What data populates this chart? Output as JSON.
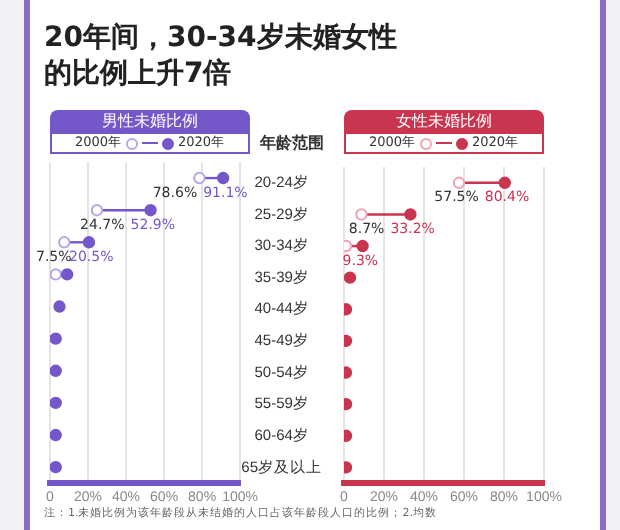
{
  "chart_data": [
    {
      "type": "scatter",
      "title": "20年间，30-34岁未婚女性的比例上升7倍",
      "subtitle": "男性未婚比例",
      "orientation": "horizontal",
      "categories": [
        null,
        null,
        null,
        null,
        null,
        null,
        null,
        null,
        null,
        null
      ],
      "series": [
        {
          "name": "2000年",
          "color": "#b7a6ea",
          "values": [
            78.6,
            24.7,
            7.5,
            3,
            null,
            null,
            null,
            null,
            null,
            null
          ],
          "value_labels": [
            "78.6%",
            "24.7%",
            "7.5%",
            null,
            null,
            null,
            null,
            null,
            null,
            null
          ]
        },
        {
          "name": "2020年",
          "color": "#7457c9",
          "values": [
            91.1,
            52.9,
            20.5,
            9,
            5,
            3,
            3,
            3,
            3,
            3
          ],
          "value_labels": [
            "91.1%",
            "52.9%",
            "20.5%",
            null,
            null,
            null,
            null,
            null,
            null,
            null
          ]
        }
      ],
      "xlim": [
        0,
        100
      ],
      "xticks": [
        {
          "value": 0,
          "label": "0"
        },
        {
          "value": 20,
          "label": "20%"
        },
        {
          "value": 40,
          "label": "40%"
        },
        {
          "value": 60,
          "label": "60%"
        },
        {
          "value": 80,
          "label": "80%"
        },
        {
          "value": 100,
          "label": "100%"
        }
      ],
      "tick_labels": "x",
      "grid": "x",
      "legend": "top",
      "marker": "circle",
      "annotations": [
        "注：1.未婚比例为该年龄段从未结婚的人口占该年龄段人口的比例；2.均数"
      ]
    },
    {
      "type": "scatter",
      "subtitle": "女性未婚比例",
      "ylabel": "年龄范围",
      "orientation": "horizontal",
      "categories": [
        "20-24岁",
        "25-29岁",
        "30-34岁",
        "35-39岁",
        "40-44岁",
        "45-49岁",
        "50-54岁",
        "55-59岁",
        "60-64岁",
        "65岁及以上"
      ],
      "series": [
        {
          "name": "2000年",
          "color": "#f2a3b5",
          "values": [
            57.5,
            8.7,
            1,
            null,
            null,
            null,
            null,
            null,
            null,
            null
          ],
          "value_labels": [
            "57.5%",
            "8.7%",
            null,
            null,
            null,
            null,
            null,
            null,
            null,
            null
          ]
        },
        {
          "name": "2020年",
          "color": "#c9344f",
          "values": [
            80.4,
            33.2,
            9.3,
            3,
            1,
            1,
            1,
            1,
            1,
            1
          ],
          "value_labels": [
            "80.4%",
            "33.2%",
            "9.3%",
            null,
            null,
            null,
            null,
            null,
            null,
            null
          ]
        }
      ],
      "xlim": [
        0,
        100
      ],
      "xticks": [
        {
          "value": 0,
          "label": "0"
        },
        {
          "value": 20,
          "label": "20%"
        },
        {
          "value": 40,
          "label": "40%"
        },
        {
          "value": 60,
          "label": "60%"
        },
        {
          "value": 80,
          "label": "80%"
        },
        {
          "value": 100,
          "label": "100%"
        }
      ],
      "grid": "x",
      "legend": "top",
      "marker": "circle"
    }
  ]
}
